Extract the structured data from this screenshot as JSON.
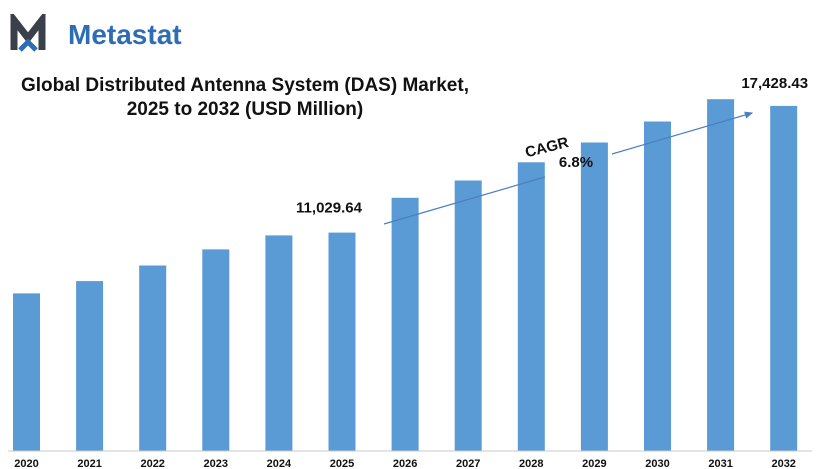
{
  "brand": {
    "name": "Metastat",
    "color": "#2e6db4",
    "mark_color": "#3a3f4a"
  },
  "colors": {
    "bar": "#5b9bd5",
    "axis": "#c8c8c8",
    "arrow": "#4a7fc1",
    "text": "#111111"
  },
  "chart_data": {
    "type": "bar",
    "title": "Global Distributed Antenna System (DAS) Market,",
    "subtitle": "2025 to 2032 (USD Million)",
    "xlabel": "",
    "ylabel": "",
    "grid": false,
    "legend": "none",
    "ylim": [
      0,
      20000
    ],
    "categories": [
      "2020",
      "2021",
      "2022",
      "2023",
      "2024",
      "2025",
      "2026",
      "2027",
      "2028",
      "2029",
      "2030",
      "2031",
      "2032"
    ],
    "values": [
      7960,
      8580,
      9370,
      10180,
      10890,
      11029.64,
      12790,
      13660,
      14580,
      15580,
      16640,
      17770,
      17428.43
    ],
    "data_labels": [
      {
        "category": "2025",
        "text": "11,029.64"
      },
      {
        "category": "2032",
        "text": "17,428.43"
      }
    ],
    "annotations": {
      "cagr_label": "CAGR",
      "cagr_value": "6.8%"
    }
  }
}
